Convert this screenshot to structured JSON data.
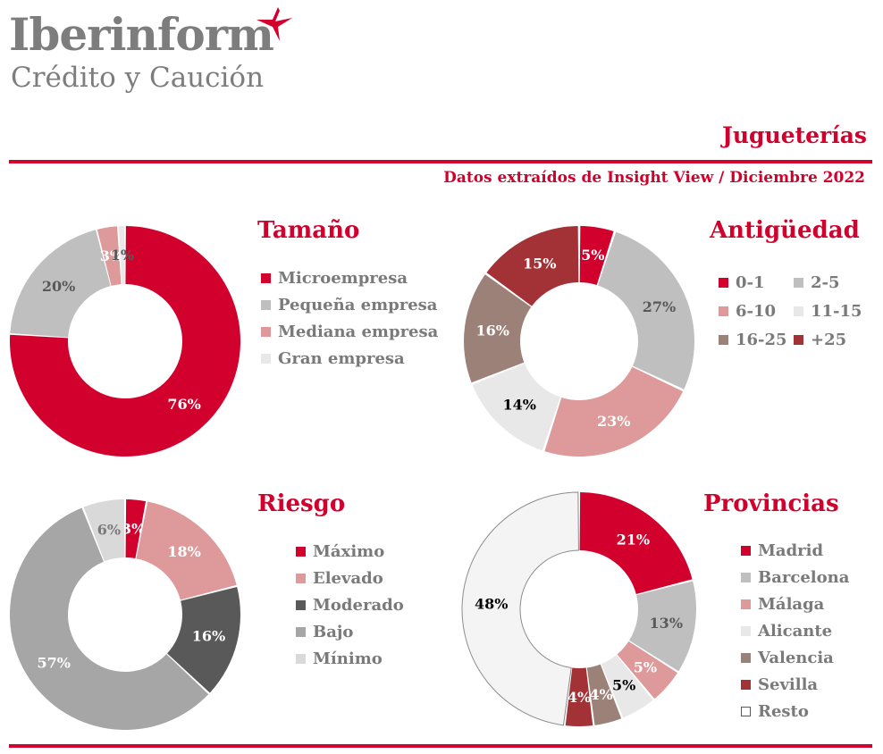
{
  "logo": {
    "name": "Iberinform",
    "subtitle": "Crédito y Caución"
  },
  "page_title": "Jugueterías",
  "source": "Datos extraídos de Insight View / Diciembre  2022",
  "colors": {
    "red": "#d1002c",
    "light_gray": "#bfbfbf",
    "pink": "#de9a9a",
    "very_light_gray": "#e8e8e8",
    "taupe": "#9c8178",
    "dark_red": "#a33236",
    "dark_gray": "#595959",
    "mid_gray": "#a6a6a6",
    "light_gray2": "#d9d9d9",
    "near_white": "#f4f4f4"
  },
  "chart_data": [
    {
      "type": "pie",
      "title": "Tamaño",
      "categories": [
        "Microempresa",
        "Pequeña empresa",
        "Mediana empresa",
        "Gran empresa"
      ],
      "values": [
        76,
        20,
        3,
        1
      ],
      "labels": [
        "76%",
        "20%",
        "3%",
        "1%"
      ],
      "colors": [
        "#d1002c",
        "#bfbfbf",
        "#de9a9a",
        "#e8e8e8"
      ],
      "label_colors": [
        "#ffffff",
        "#595959",
        "#ffffff",
        "#595959"
      ],
      "legend_layout": "list"
    },
    {
      "type": "pie",
      "title": "Antigüedad",
      "categories": [
        "0-1",
        "2-5",
        "6-10",
        "11-15",
        "16-25",
        "+25"
      ],
      "values": [
        5,
        27,
        23,
        14,
        16,
        15
      ],
      "labels": [
        "5%",
        "27%",
        "23%",
        "14%",
        "16%",
        "15%"
      ],
      "colors": [
        "#d1002c",
        "#bfbfbf",
        "#de9a9a",
        "#e8e8e8",
        "#9c8178",
        "#a33236"
      ],
      "label_colors": [
        "#ffffff",
        "#595959",
        "#ffffff",
        "#000000",
        "#ffffff",
        "#ffffff"
      ],
      "legend_layout": "grid"
    },
    {
      "type": "pie",
      "title": "Riesgo",
      "categories": [
        "Máximo",
        "Elevado",
        "Moderado",
        "Bajo",
        "Mínimo"
      ],
      "values": [
        3,
        18,
        16,
        57,
        6
      ],
      "labels": [
        "3%",
        "18%",
        "16%",
        "57%",
        "6%"
      ],
      "colors": [
        "#d1002c",
        "#de9a9a",
        "#595959",
        "#a6a6a6",
        "#d9d9d9"
      ],
      "label_colors": [
        "#ffffff",
        "#ffffff",
        "#ffffff",
        "#ffffff",
        "#7a7a7a"
      ],
      "legend_layout": "list"
    },
    {
      "type": "pie",
      "title": "Provincias",
      "categories": [
        "Madrid",
        "Barcelona",
        "Málaga",
        "Alicante",
        "Valencia",
        "Sevilla",
        "Resto"
      ],
      "values": [
        21,
        13,
        5,
        5,
        4,
        4,
        48
      ],
      "labels": [
        "21%",
        "13%",
        "5%",
        "5%",
        "4%",
        "4%",
        "48%"
      ],
      "colors": [
        "#d1002c",
        "#bfbfbf",
        "#de9a9a",
        "#e8e8e8",
        "#9c8178",
        "#a33236",
        "#f4f4f4"
      ],
      "label_colors": [
        "#ffffff",
        "#595959",
        "#ffffff",
        "#000000",
        "#ffffff",
        "#ffffff",
        "#000000"
      ],
      "legend_layout": "list"
    }
  ]
}
